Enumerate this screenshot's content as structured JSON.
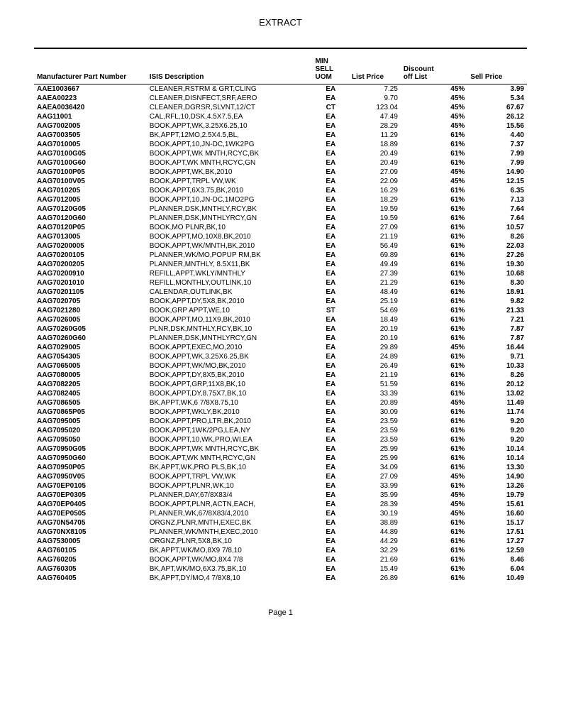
{
  "title": "EXTRACT",
  "footer": "Page 1",
  "columns": {
    "part": "Manufacturer Part Number",
    "desc": "ISIS Description",
    "uom": "MIN\nSELL\nUOM",
    "price": "List Price",
    "disc": "Discount\noff List",
    "sell": "Sell Price"
  },
  "rows": [
    {
      "part": "AAE1003667",
      "desc": "CLEANER,RSTRM & GRT,CLING",
      "uom": "EA",
      "price": "7.25",
      "disc": "45%",
      "sell": "3.99"
    },
    {
      "part": "AAEA00223",
      "desc": "CLEANER,DISNFECT,SRF,AERO",
      "uom": "EA",
      "price": "9.70",
      "disc": "45%",
      "sell": "5.34"
    },
    {
      "part": "AAEA0036420",
      "desc": "CLEANER,DGRSR,SLVNT,12/CT",
      "uom": "CT",
      "price": "123.04",
      "disc": "45%",
      "sell": "67.67"
    },
    {
      "part": "AAG11001",
      "desc": "CAL,RFL,10,DSK,4.5X7.5,EA",
      "uom": "EA",
      "price": "47.49",
      "disc": "45%",
      "sell": "26.12"
    },
    {
      "part": "AAG7002005",
      "desc": "BOOK,APPT,WK,3.25X6.25,10",
      "uom": "EA",
      "price": "28.29",
      "disc": "45%",
      "sell": "15.56"
    },
    {
      "part": "AAG7003505",
      "desc": "BK,APPT,12MO,2.5X4.5,BL,",
      "uom": "EA",
      "price": "11.29",
      "disc": "61%",
      "sell": "4.40"
    },
    {
      "part": "AAG7010005",
      "desc": "BOOK,APPT,10,JN-DC,1WK2PG",
      "uom": "EA",
      "price": "18.89",
      "disc": "61%",
      "sell": "7.37"
    },
    {
      "part": "AAG70100G05",
      "desc": "BOOK,APPT,WK MNTH,RCYC,BK",
      "uom": "EA",
      "price": "20.49",
      "disc": "61%",
      "sell": "7.99"
    },
    {
      "part": "AAG70100G60",
      "desc": "BOOK,APT,WK MNTH,RCYC,GN",
      "uom": "EA",
      "price": "20.49",
      "disc": "61%",
      "sell": "7.99"
    },
    {
      "part": "AAG70100P05",
      "desc": "BOOK,APPT,WK,BK,2010",
      "uom": "EA",
      "price": "27.09",
      "disc": "45%",
      "sell": "14.90"
    },
    {
      "part": "AAG70100V05",
      "desc": "BOOK,APPT,TRPL VW,WK",
      "uom": "EA",
      "price": "22.09",
      "disc": "45%",
      "sell": "12.15"
    },
    {
      "part": "AAG7010205",
      "desc": "BOOK,APPT,6X3.75,BK,2010",
      "uom": "EA",
      "price": "16.29",
      "disc": "61%",
      "sell": "6.35"
    },
    {
      "part": "AAG7012005",
      "desc": "BOOK,APPT,10,JN-DC,1MO2PG",
      "uom": "EA",
      "price": "18.29",
      "disc": "61%",
      "sell": "7.13"
    },
    {
      "part": "AAG70120G05",
      "desc": "PLANNER,DSK,MNTHLY,RCY,BK",
      "uom": "EA",
      "price": "19.59",
      "disc": "61%",
      "sell": "7.64"
    },
    {
      "part": "AAG70120G60",
      "desc": "PLANNER,DSK,MNTHLYRCY,GN",
      "uom": "EA",
      "price": "19.59",
      "disc": "61%",
      "sell": "7.64"
    },
    {
      "part": "AAG70120P05",
      "desc": "BOOK,MO PLNR,BK,10",
      "uom": "EA",
      "price": "27.09",
      "disc": "61%",
      "sell": "10.57"
    },
    {
      "part": "AAG7013005",
      "desc": "BOOK,APPT,MO,10X8,BK,2010",
      "uom": "EA",
      "price": "21.19",
      "disc": "61%",
      "sell": "8.26"
    },
    {
      "part": "AAG70200005",
      "desc": "BOOK,APPT,WK/MNTH,BK,2010",
      "uom": "EA",
      "price": "56.49",
      "disc": "61%",
      "sell": "22.03"
    },
    {
      "part": "AAG70200105",
      "desc": "PLANNER,WK/MO,POPUP RM,BK",
      "uom": "EA",
      "price": "69.89",
      "disc": "61%",
      "sell": "27.26"
    },
    {
      "part": "AAG70200205",
      "desc": "PLANNER,MNTHLY, 8.5X11,BK",
      "uom": "EA",
      "price": "49.49",
      "disc": "61%",
      "sell": "19.30"
    },
    {
      "part": "AAG70200910",
      "desc": "REFILL,APPT,WKLY/MNTHLY",
      "uom": "EA",
      "price": "27.39",
      "disc": "61%",
      "sell": "10.68"
    },
    {
      "part": "AAG70201010",
      "desc": "REFILL,MONTHLY,OUTLINK,10",
      "uom": "EA",
      "price": "21.29",
      "disc": "61%",
      "sell": "8.30"
    },
    {
      "part": "AAG70201105",
      "desc": "CALENDAR,OUTLINK,BK",
      "uom": "EA",
      "price": "48.49",
      "disc": "61%",
      "sell": "18.91"
    },
    {
      "part": "AAG7020705",
      "desc": "BOOK,APPT,DY,5X8,BK,2010",
      "uom": "EA",
      "price": "25.19",
      "disc": "61%",
      "sell": "9.82"
    },
    {
      "part": "AAG7021280",
      "desc": "BOOK,GRP APPT,WE,10",
      "uom": "ST",
      "price": "54.69",
      "disc": "61%",
      "sell": "21.33"
    },
    {
      "part": "AAG7026005",
      "desc": "BOOK,APPT,MO,11X9,BK,2010",
      "uom": "EA",
      "price": "18.49",
      "disc": "61%",
      "sell": "7.21"
    },
    {
      "part": "AAG70260G05",
      "desc": "PLNR,DSK,MNTHLY,RCY,BK,10",
      "uom": "EA",
      "price": "20.19",
      "disc": "61%",
      "sell": "7.87"
    },
    {
      "part": "AAG70260G60",
      "desc": "PLANNER,DSK,MNTHLYRCY,GN",
      "uom": "EA",
      "price": "20.19",
      "disc": "61%",
      "sell": "7.87"
    },
    {
      "part": "AAG7029005",
      "desc": "BOOK,APPT,EXEC,MO,2010",
      "uom": "EA",
      "price": "29.89",
      "disc": "45%",
      "sell": "16.44"
    },
    {
      "part": "AAG7054305",
      "desc": "BOOK,APPT,WK,3.25X6.25,BK",
      "uom": "EA",
      "price": "24.89",
      "disc": "61%",
      "sell": "9.71"
    },
    {
      "part": "AAG7065005",
      "desc": "BOOK,APPT,WK/MO,BK,2010",
      "uom": "EA",
      "price": "26.49",
      "disc": "61%",
      "sell": "10.33"
    },
    {
      "part": "AAG7080005",
      "desc": "BOOK,APPT,DY,8X5,BK,2010",
      "uom": "EA",
      "price": "21.19",
      "disc": "61%",
      "sell": "8.26"
    },
    {
      "part": "AAG7082205",
      "desc": "BOOK,APPT,GRP,11X8,BK,10",
      "uom": "EA",
      "price": "51.59",
      "disc": "61%",
      "sell": "20.12"
    },
    {
      "part": "AAG7082405",
      "desc": "BOOK,APPT,DY,8.75X7,BK,10",
      "uom": "EA",
      "price": "33.39",
      "disc": "61%",
      "sell": "13.02"
    },
    {
      "part": "AAG7086505",
      "desc": "BK,APPT,WK,6 7/8X8.75,10",
      "uom": "EA",
      "price": "20.89",
      "disc": "45%",
      "sell": "11.49"
    },
    {
      "part": "AAG70865P05",
      "desc": "BOOK,APPT,WKLY,BK,2010",
      "uom": "EA",
      "price": "30.09",
      "disc": "61%",
      "sell": "11.74"
    },
    {
      "part": "AAG7095005",
      "desc": "BOOK,APPT,PRO,LTR,BK,2010",
      "uom": "EA",
      "price": "23.59",
      "disc": "61%",
      "sell": "9.20"
    },
    {
      "part": "AAG7095020",
      "desc": "BOOK,APPT,1WK/2PG,LEA,NY",
      "uom": "EA",
      "price": "23.59",
      "disc": "61%",
      "sell": "9.20"
    },
    {
      "part": "AAG7095050",
      "desc": "BOOK,APPT,10,WK,PRO,WI,EA",
      "uom": "EA",
      "price": "23.59",
      "disc": "61%",
      "sell": "9.20"
    },
    {
      "part": "AAG70950G05",
      "desc": "BOOK,APPT,WK MNTH,RCYC,BK",
      "uom": "EA",
      "price": "25.99",
      "disc": "61%",
      "sell": "10.14"
    },
    {
      "part": "AAG70950G60",
      "desc": "BOOK,APT,WK MNTH,RCYC,GN",
      "uom": "EA",
      "price": "25.99",
      "disc": "61%",
      "sell": "10.14"
    },
    {
      "part": "AAG70950P05",
      "desc": "BK,APPT,WK,PRO PLS,BK,10",
      "uom": "EA",
      "price": "34.09",
      "disc": "61%",
      "sell": "13.30"
    },
    {
      "part": "AAG70950V05",
      "desc": "BOOK,APPT,TRPL VW,WK",
      "uom": "EA",
      "price": "27.09",
      "disc": "45%",
      "sell": "14.90"
    },
    {
      "part": "AAG70EP0105",
      "desc": "BOOK,APPT,PLNR,WK,10",
      "uom": "EA",
      "price": "33.99",
      "disc": "61%",
      "sell": "13.26"
    },
    {
      "part": "AAG70EP0305",
      "desc": "PLANNER,DAY,67/8X83/4",
      "uom": "EA",
      "price": "35.99",
      "disc": "45%",
      "sell": "19.79"
    },
    {
      "part": "AAG70EP0405",
      "desc": "BOOK,APPT,PLNR,ACTN,EACH,",
      "uom": "EA",
      "price": "28.39",
      "disc": "45%",
      "sell": "15.61"
    },
    {
      "part": "AAG70EP0505",
      "desc": "PLANNER,WK,67/8X83/4,2010",
      "uom": "EA",
      "price": "30.19",
      "disc": "45%",
      "sell": "16.60"
    },
    {
      "part": "AAG70N54705",
      "desc": "ORGNZ,PLNR,MNTH,EXEC,BK",
      "uom": "EA",
      "price": "38.89",
      "disc": "61%",
      "sell": "15.17"
    },
    {
      "part": "AAG70NX8105",
      "desc": "PLANNER,WK/MNTH,EXEC,2010",
      "uom": "EA",
      "price": "44.89",
      "disc": "61%",
      "sell": "17.51"
    },
    {
      "part": "AAG7530005",
      "desc": "ORGNZ,PLNR,5X8,BK,10",
      "uom": "EA",
      "price": "44.29",
      "disc": "61%",
      "sell": "17.27"
    },
    {
      "part": "AAG760105",
      "desc": "BK,APPT,WK/MO,8X9 7/8,10",
      "uom": "EA",
      "price": "32.29",
      "disc": "61%",
      "sell": "12.59"
    },
    {
      "part": "AAG760205",
      "desc": "BOOK,APPT,WK/MO,8X4 7/8",
      "uom": "EA",
      "price": "21.69",
      "disc": "61%",
      "sell": "8.46"
    },
    {
      "part": "AAG760305",
      "desc": "BK,APT,WK/MO,6X3.75,BK,10",
      "uom": "EA",
      "price": "15.49",
      "disc": "61%",
      "sell": "6.04"
    },
    {
      "part": "AAG760405",
      "desc": "BK,APPT,DY/MO,4 7/8X8,10",
      "uom": "EA",
      "price": "26.89",
      "disc": "61%",
      "sell": "10.49"
    }
  ]
}
